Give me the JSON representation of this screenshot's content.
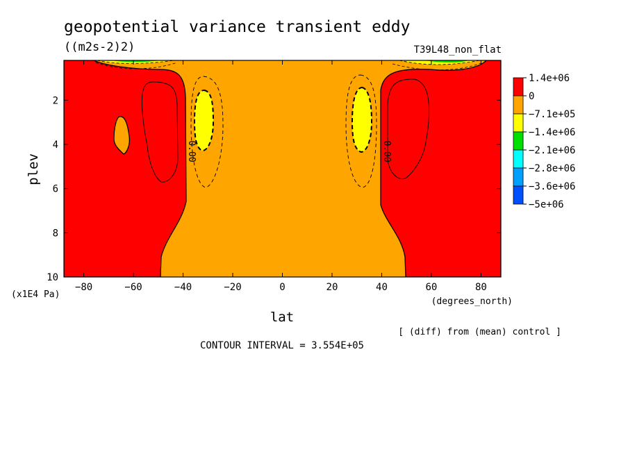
{
  "chart_data": {
    "type": "contour",
    "title": "geopotential variance transient eddy",
    "units": "((m2s-2)2)",
    "run_label": "T39L48_non_flat",
    "xlabel": "lat",
    "xunits": "(degrees_north)",
    "ylabel": "plev",
    "yunits": "(x1E4 Pa)",
    "xlim": [
      -88,
      88
    ],
    "ylim": [
      0.2,
      10
    ],
    "y_inverted": true,
    "x_ticks": [
      -80,
      -60,
      -40,
      -20,
      0,
      20,
      40,
      60,
      80
    ],
    "y_ticks": [
      2,
      4,
      6,
      8,
      10
    ],
    "zero_contour_label": "0.00",
    "legend": {
      "placement": "right",
      "levels": [
        "1.4e+06",
        "0",
        "−7.1e+05",
        "−1.4e+06",
        "−2.1e+06",
        "−2.8e+06",
        "−3.6e+06",
        "−5e+06"
      ],
      "colors": [
        "#ff0000",
        "#ffa500",
        "#ffff00",
        "#00e000",
        "#00ffff",
        "#00a0ff",
        "#0050ff"
      ]
    },
    "regions": [
      {
        "name": "positive-west",
        "color": "#ff0000",
        "lat_range": [
          -88,
          -42
        ]
      },
      {
        "name": "negative-center",
        "color": "#ffa500",
        "lat_range": [
          -42,
          42
        ]
      },
      {
        "name": "positive-east",
        "color": "#ff0000",
        "lat_range": [
          42,
          88
        ]
      }
    ],
    "minima": [
      {
        "lat": -32,
        "plev": 3.0,
        "value_band": "-7.1e+05 to -1.4e+06"
      },
      {
        "lat": 33,
        "plev": 3.0,
        "value_band": "-7.1e+05 to -1.4e+06"
      }
    ],
    "note": "[ (diff) from (mean) control ]",
    "contour_interval_text": "CONTOUR INTERVAL = 3.554E+05"
  }
}
